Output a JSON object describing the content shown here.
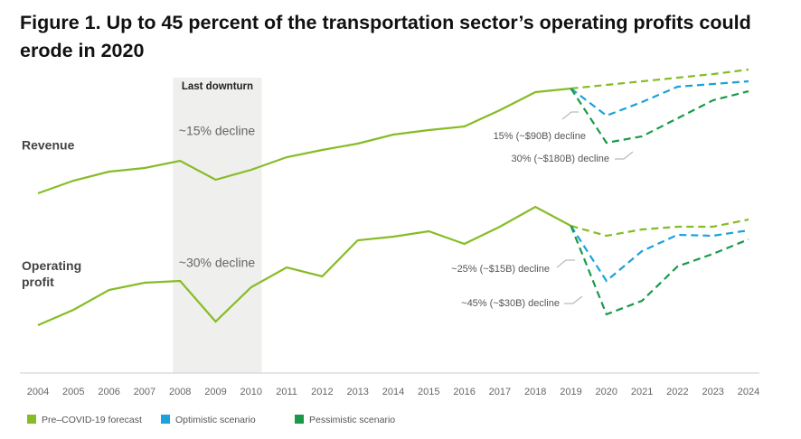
{
  "chart_data": {
    "type": "line",
    "title": "Figure 1. Up to 45 percent of the transportation sector’s operating profits could erode in 2020",
    "x": [
      2004,
      2005,
      2006,
      2007,
      2008,
      2009,
      2010,
      2011,
      2012,
      2013,
      2014,
      2015,
      2016,
      2017,
      2018,
      2019,
      2020,
      2021,
      2022,
      2023,
      2024
    ],
    "ylim": [
      27,
      360
    ],
    "forecast_from": 2019,
    "downturn": {
      "label": "Last downturn",
      "from": 2008,
      "to": 2010
    },
    "row_labels": {
      "revenue": "Revenue",
      "operating_profit": "Operating profit"
    },
    "series": [
      {
        "name": "Pre–COVID-19 forecast",
        "color": "#86bc25",
        "revenue": [
          226,
          240,
          250,
          254,
          262,
          241,
          252,
          266,
          274,
          281,
          291,
          296,
          300,
          318,
          338,
          342,
          346,
          350,
          354,
          358,
          363
        ],
        "operating_profit": [
          80,
          97,
          119,
          127,
          129,
          84,
          122,
          144,
          134,
          174,
          178,
          184,
          170,
          189,
          211,
          190,
          179,
          186,
          189,
          189,
          197
        ]
      },
      {
        "name": "Optimistic scenario",
        "color": "#1ba1dc",
        "revenue": [
          null,
          null,
          null,
          null,
          null,
          null,
          null,
          null,
          null,
          null,
          null,
          null,
          null,
          null,
          null,
          342,
          312,
          327,
          344,
          347,
          350
        ],
        "operating_profit": [
          null,
          null,
          null,
          null,
          null,
          null,
          null,
          null,
          null,
          null,
          null,
          null,
          null,
          null,
          null,
          190,
          129,
          162,
          180,
          179,
          185
        ]
      },
      {
        "name": "Pessimistic scenario",
        "color": "#1a9a49",
        "revenue": [
          null,
          null,
          null,
          null,
          null,
          null,
          null,
          null,
          null,
          null,
          null,
          null,
          null,
          null,
          null,
          342,
          282,
          289,
          309,
          329,
          339
        ],
        "operating_profit": [
          null,
          null,
          null,
          null,
          null,
          null,
          null,
          null,
          null,
          null,
          null,
          null,
          null,
          null,
          null,
          190,
          92,
          107,
          145,
          159,
          175
        ]
      }
    ],
    "annotations": [
      "~15% decline",
      "~30% decline",
      "15% (~$90B) decline",
      "30% (~$180B) decline",
      "~25% (~$15B) decline",
      "~45% (~$30B) decline"
    ]
  }
}
